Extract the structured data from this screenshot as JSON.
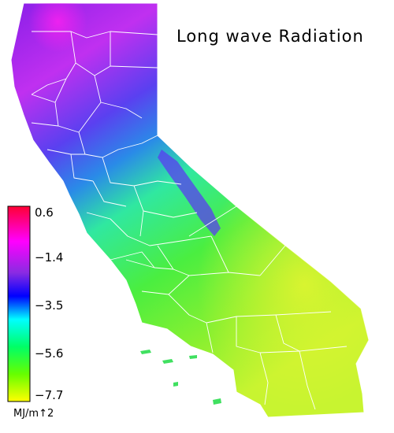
{
  "title": "Long wave Radiation",
  "legend": {
    "unit": "MJ/m↑2",
    "ticks": [
      "0.6",
      "−1.4",
      "−3.5",
      "−5.6",
      "−7.7"
    ],
    "values": [
      0.6,
      -1.4,
      -3.5,
      -5.6,
      -7.7
    ],
    "gradient_colors": [
      "#ff0033",
      "#ff00ff",
      "#8a2be2",
      "#0000ff",
      "#00ffff",
      "#00ff66",
      "#66ff00",
      "#ffff00"
    ]
  },
  "region_colors": {
    "north_coast": "#7a1fe8",
    "northeast": "#b030f0",
    "sacramento_valley": "#6a3cf0",
    "bay_area": "#3a5ce8",
    "sierra": "#2db8d8",
    "central_valley": "#3ee86a",
    "southern_desert": "#b8f030",
    "southern_coast": "#40e060"
  },
  "outline_color": "#ffffff"
}
